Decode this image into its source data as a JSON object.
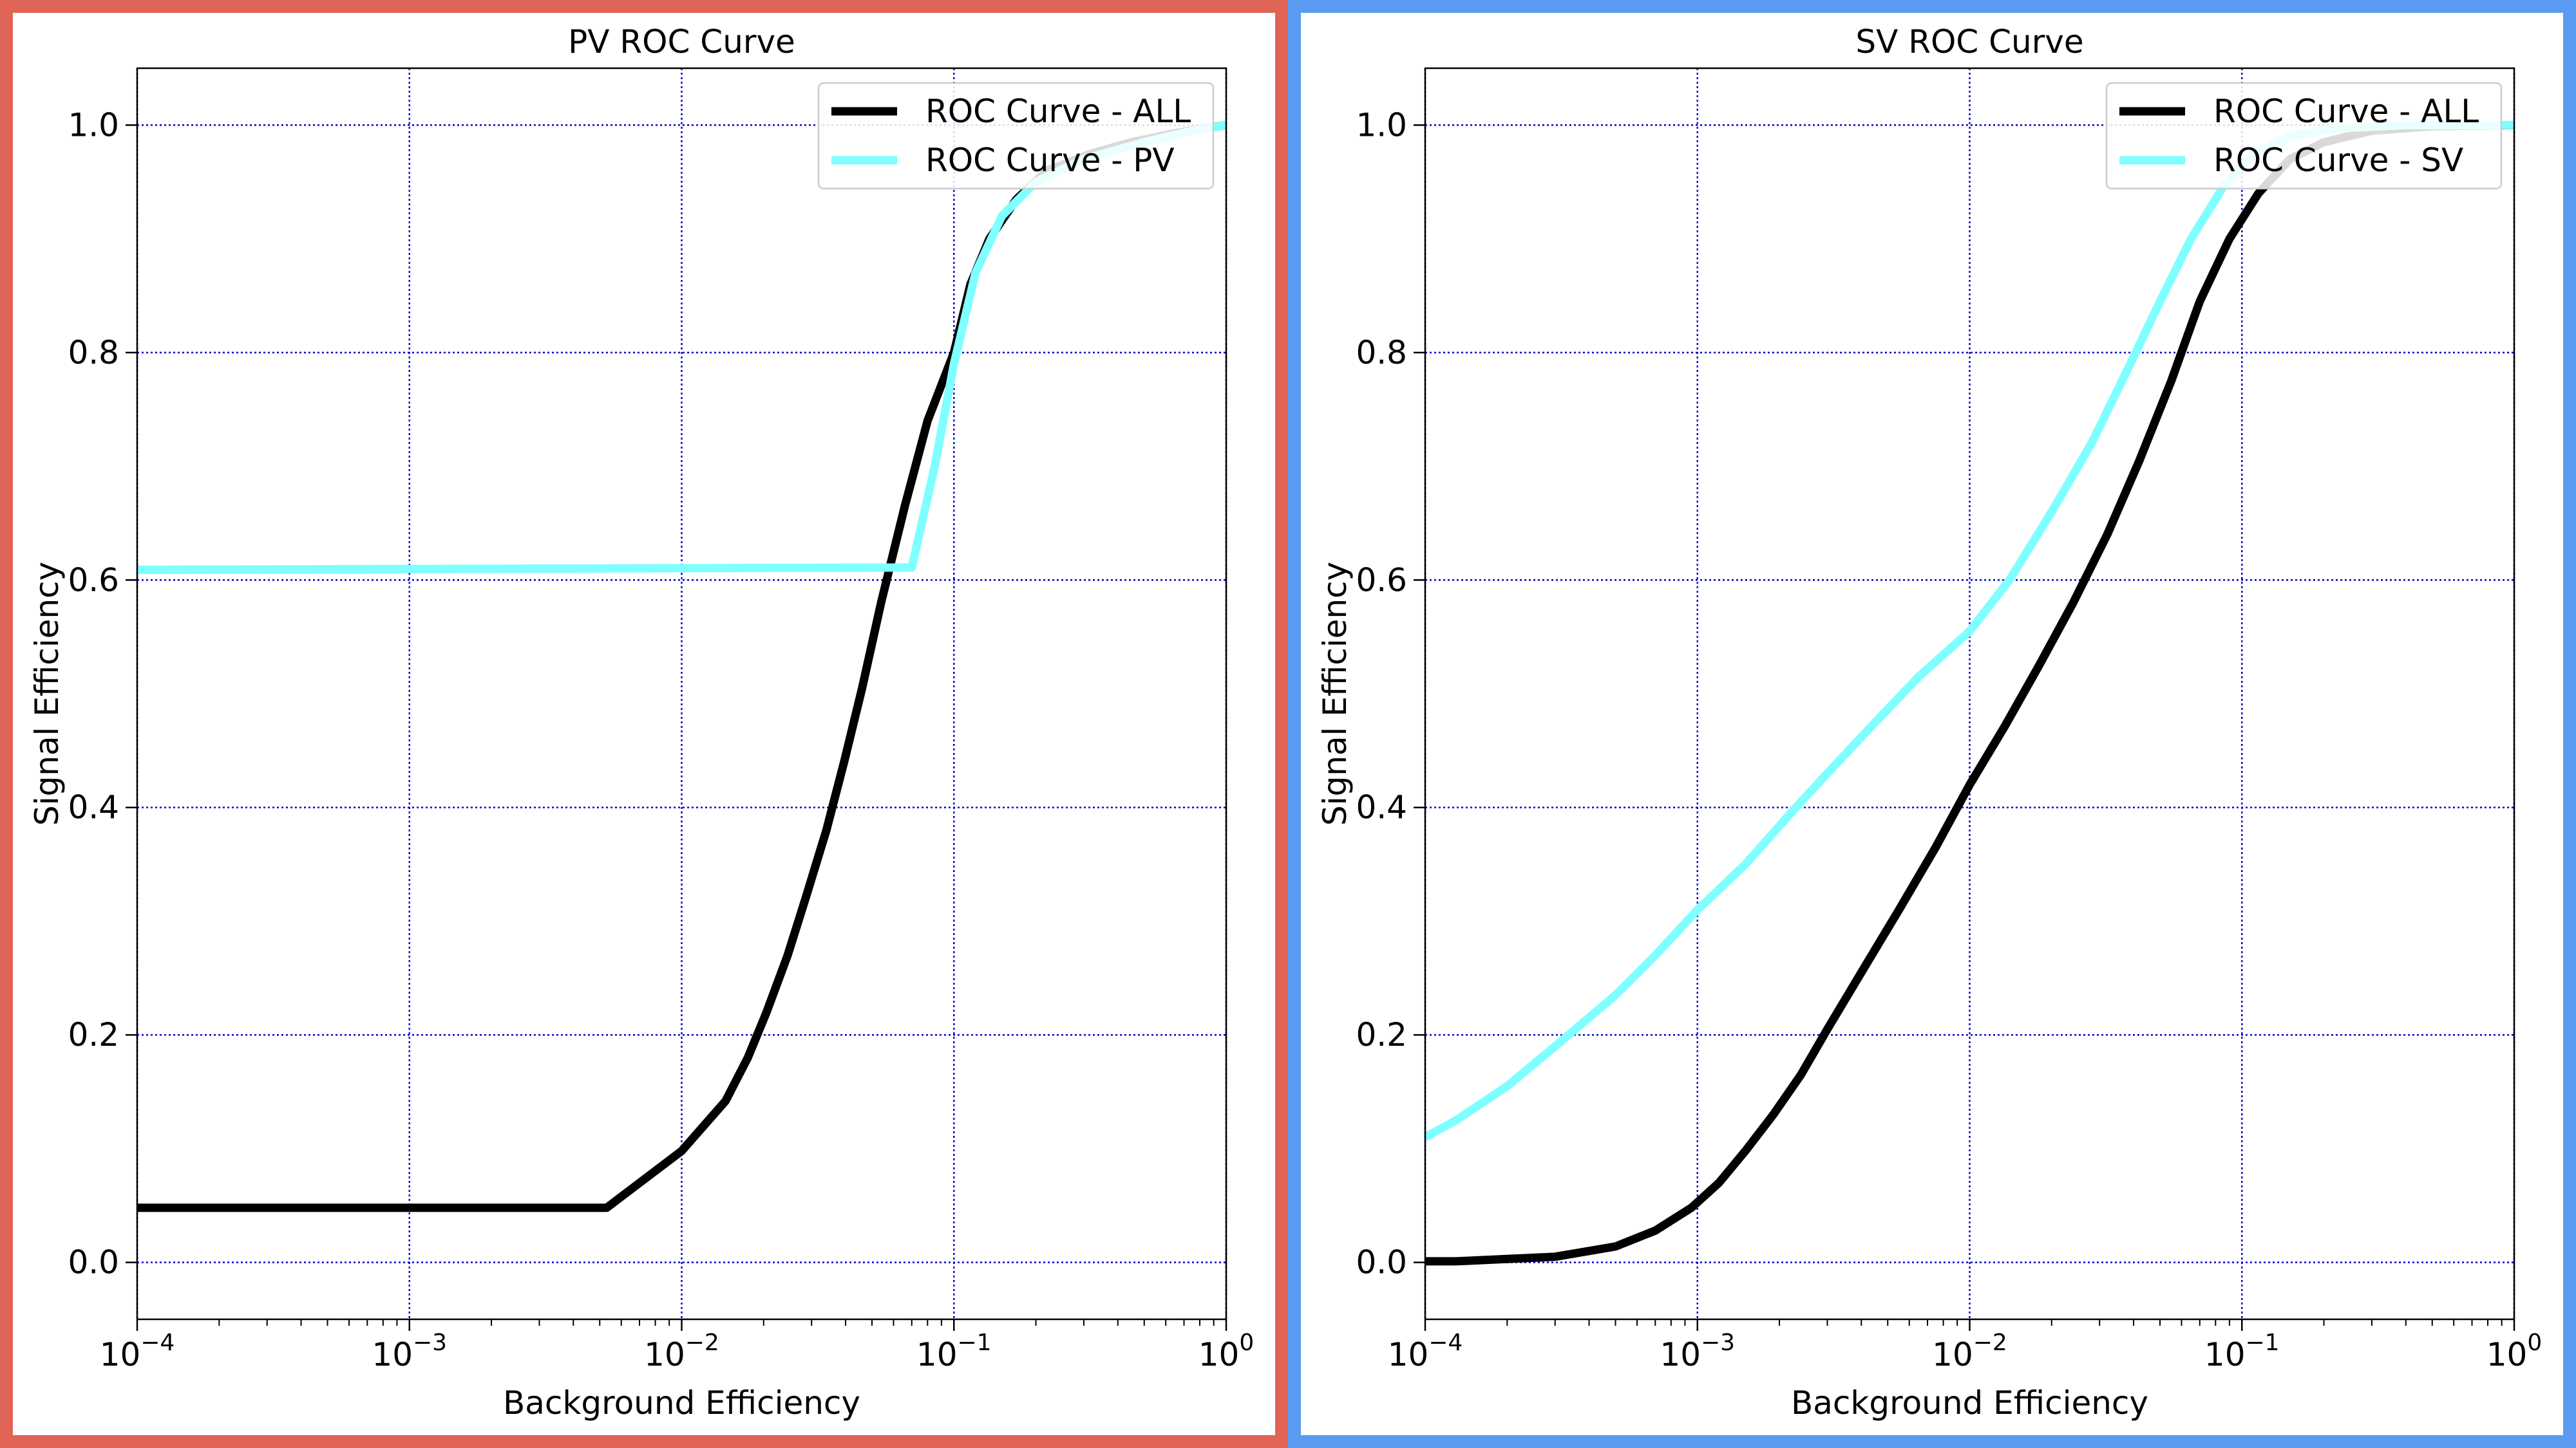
{
  "colors": {
    "left_frame": "#E06455",
    "right_frame": "#5B9BF2",
    "grid": "#0000CC",
    "series_all": "#000000",
    "series_pv": "#7FFFFF",
    "series_sv": "#7FFFFF"
  },
  "chart_data": [
    {
      "type": "line",
      "title": "PV ROC Curve",
      "xlabel": "Background Efficiency",
      "ylabel": "Signal Efficiency",
      "xscale": "log",
      "xlim": [
        0.0001,
        1
      ],
      "ylim": [
        -0.05,
        1.05
      ],
      "xticks": [
        {
          "value": 0.0001,
          "base": "10",
          "exp": "−4"
        },
        {
          "value": 0.001,
          "base": "10",
          "exp": "−3"
        },
        {
          "value": 0.01,
          "base": "10",
          "exp": "−2"
        },
        {
          "value": 0.1,
          "base": "10",
          "exp": "−1"
        },
        {
          "value": 1,
          "base": "10",
          "exp": "0"
        }
      ],
      "yticks": [
        "0.0",
        "0.2",
        "0.4",
        "0.6",
        "0.8",
        "1.0"
      ],
      "grid": true,
      "legend_position": "top-right",
      "series": [
        {
          "name": "ROC Curve - ALL",
          "color": "#000000",
          "points": [
            [
              0.0001,
              0.048
            ],
            [
              0.0053,
              0.048
            ],
            [
              0.01,
              0.098
            ],
            [
              0.0145,
              0.142
            ],
            [
              0.0175,
              0.18
            ],
            [
              0.0205,
              0.22
            ],
            [
              0.0245,
              0.27
            ],
            [
              0.0285,
              0.32
            ],
            [
              0.034,
              0.38
            ],
            [
              0.0395,
              0.44
            ],
            [
              0.046,
              0.505
            ],
            [
              0.054,
              0.58
            ],
            [
              0.066,
              0.665
            ],
            [
              0.08,
              0.74
            ],
            [
              0.1,
              0.8
            ],
            [
              0.115,
              0.86
            ],
            [
              0.135,
              0.9
            ],
            [
              0.17,
              0.935
            ],
            [
              0.22,
              0.96
            ],
            [
              0.32,
              0.975
            ],
            [
              0.45,
              0.985
            ],
            [
              0.65,
              0.993
            ],
            [
              1.0,
              1.0
            ]
          ]
        },
        {
          "name": "ROC Curve - PV",
          "color": "#7FFFFF",
          "points": [
            [
              0.0001,
              0.609
            ],
            [
              0.07,
              0.611
            ],
            [
              0.085,
              0.7
            ],
            [
              0.1,
              0.79
            ],
            [
              0.12,
              0.87
            ],
            [
              0.15,
              0.92
            ],
            [
              0.2,
              0.95
            ],
            [
              0.3,
              0.97
            ],
            [
              0.5,
              0.985
            ],
            [
              0.75,
              0.995
            ],
            [
              1.0,
              1.0
            ]
          ]
        }
      ]
    },
    {
      "type": "line",
      "title": "SV ROC Curve",
      "xlabel": "Background Efficiency",
      "ylabel": "Signal Efficiency",
      "xscale": "log",
      "xlim": [
        0.0001,
        1
      ],
      "ylim": [
        -0.05,
        1.05
      ],
      "xticks": [
        {
          "value": 0.0001,
          "base": "10",
          "exp": "−4"
        },
        {
          "value": 0.001,
          "base": "10",
          "exp": "−3"
        },
        {
          "value": 0.01,
          "base": "10",
          "exp": "−2"
        },
        {
          "value": 0.1,
          "base": "10",
          "exp": "−1"
        },
        {
          "value": 1,
          "base": "10",
          "exp": "0"
        }
      ],
      "yticks": [
        "0.0",
        "0.2",
        "0.4",
        "0.6",
        "0.8",
        "1.0"
      ],
      "grid": true,
      "legend_position": "top-right",
      "series": [
        {
          "name": "ROC Curve - ALL",
          "color": "#000000",
          "points": [
            [
              0.0001,
              0.001
            ],
            [
              0.00013,
              0.001
            ],
            [
              0.0002,
              0.003
            ],
            [
              0.0003,
              0.005
            ],
            [
              0.0005,
              0.014
            ],
            [
              0.0007,
              0.028
            ],
            [
              0.00095,
              0.048
            ],
            [
              0.0012,
              0.07
            ],
            [
              0.0015,
              0.098
            ],
            [
              0.0019,
              0.13
            ],
            [
              0.0024,
              0.165
            ],
            [
              0.003,
              0.205
            ],
            [
              0.004,
              0.255
            ],
            [
              0.0055,
              0.31
            ],
            [
              0.0075,
              0.365
            ],
            [
              0.01,
              0.42
            ],
            [
              0.0135,
              0.472
            ],
            [
              0.018,
              0.525
            ],
            [
              0.024,
              0.58
            ],
            [
              0.032,
              0.64
            ],
            [
              0.042,
              0.705
            ],
            [
              0.055,
              0.775
            ],
            [
              0.07,
              0.845
            ],
            [
              0.09,
              0.9
            ],
            [
              0.115,
              0.94
            ],
            [
              0.15,
              0.97
            ],
            [
              0.2,
              0.985
            ],
            [
              0.3,
              0.995
            ],
            [
              0.5,
              0.999
            ],
            [
              1.0,
              1.0
            ]
          ]
        },
        {
          "name": "ROC Curve - SV",
          "color": "#7FFFFF",
          "points": [
            [
              0.0001,
              0.11
            ],
            [
              0.00013,
              0.125
            ],
            [
              0.0002,
              0.155
            ],
            [
              0.0003,
              0.19
            ],
            [
              0.0005,
              0.235
            ],
            [
              0.0007,
              0.27
            ],
            [
              0.001,
              0.31
            ],
            [
              0.0015,
              0.35
            ],
            [
              0.0022,
              0.395
            ],
            [
              0.003,
              0.43
            ],
            [
              0.0045,
              0.475
            ],
            [
              0.0065,
              0.515
            ],
            [
              0.01,
              0.555
            ],
            [
              0.014,
              0.6
            ],
            [
              0.02,
              0.66
            ],
            [
              0.028,
              0.72
            ],
            [
              0.038,
              0.785
            ],
            [
              0.05,
              0.845
            ],
            [
              0.065,
              0.9
            ],
            [
              0.085,
              0.945
            ],
            [
              0.11,
              0.975
            ],
            [
              0.15,
              0.99
            ],
            [
              0.22,
              0.997
            ],
            [
              0.4,
              1.0
            ],
            [
              1.0,
              1.0
            ]
          ]
        }
      ]
    }
  ]
}
